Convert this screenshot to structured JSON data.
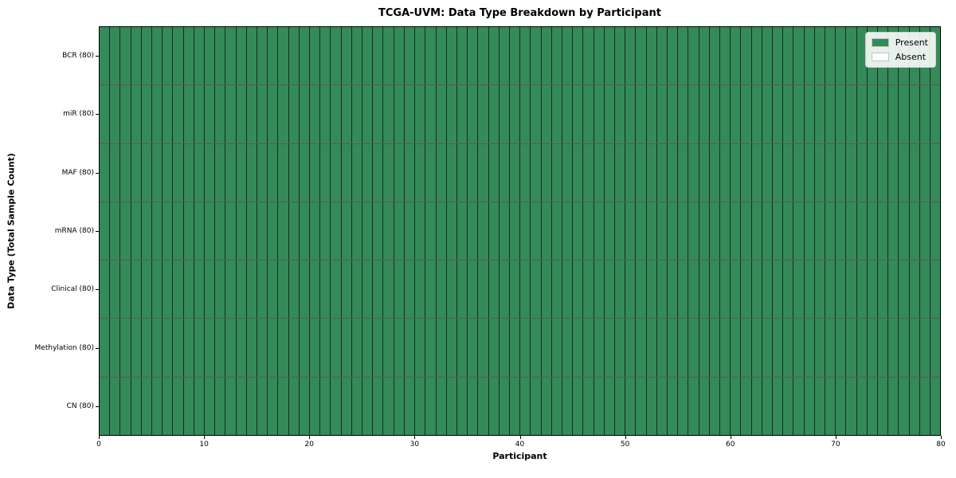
{
  "title": "TCGA-UVM: Data Type Breakdown by Participant",
  "axes": {
    "xlabel": "Participant",
    "ylabel": "Data Type (Total Sample Count)"
  },
  "legend": {
    "items": [
      {
        "label": "Present",
        "color": "#348a59"
      },
      {
        "label": "Absent",
        "color": "#ffffff"
      }
    ]
  },
  "colors": {
    "present": "#348a59",
    "absent": "#ffffff",
    "cell_border": "rgba(0,0,0,0.65)",
    "spine": "#000000"
  },
  "chart_data": {
    "type": "heatmap",
    "title": "TCGA-UVM: Data Type Breakdown by Participant",
    "xlabel": "Participant",
    "ylabel": "Data Type (Total Sample Count)",
    "xlim": [
      0,
      80
    ],
    "x_ticks": [
      0,
      10,
      20,
      30,
      40,
      50,
      60,
      70,
      80
    ],
    "n_participants": 80,
    "grid": "cell-borders-on",
    "legend_position": "upper right",
    "legend_entries": [
      "Present",
      "Absent"
    ],
    "cell_value_encoding": "presence (1 = Present, 0 = Absent)",
    "all_cells_present": true,
    "rows": [
      {
        "label": "BCR (80)",
        "data_type": "BCR",
        "total_sample_count": 80,
        "present_count": 80,
        "absent_count": 0
      },
      {
        "label": "miR (80)",
        "data_type": "miR",
        "total_sample_count": 80,
        "present_count": 80,
        "absent_count": 0
      },
      {
        "label": "MAF (80)",
        "data_type": "MAF",
        "total_sample_count": 80,
        "present_count": 80,
        "absent_count": 0
      },
      {
        "label": "mRNA (80)",
        "data_type": "mRNA",
        "total_sample_count": 80,
        "present_count": 80,
        "absent_count": 0
      },
      {
        "label": "Clinical (80)",
        "data_type": "Clinical",
        "total_sample_count": 80,
        "present_count": 80,
        "absent_count": 0
      },
      {
        "label": "Methylation (80)",
        "data_type": "Methylation",
        "total_sample_count": 80,
        "present_count": 80,
        "absent_count": 0
      },
      {
        "label": "CN (80)",
        "data_type": "CN",
        "total_sample_count": 80,
        "present_count": 80,
        "absent_count": 0
      }
    ]
  }
}
